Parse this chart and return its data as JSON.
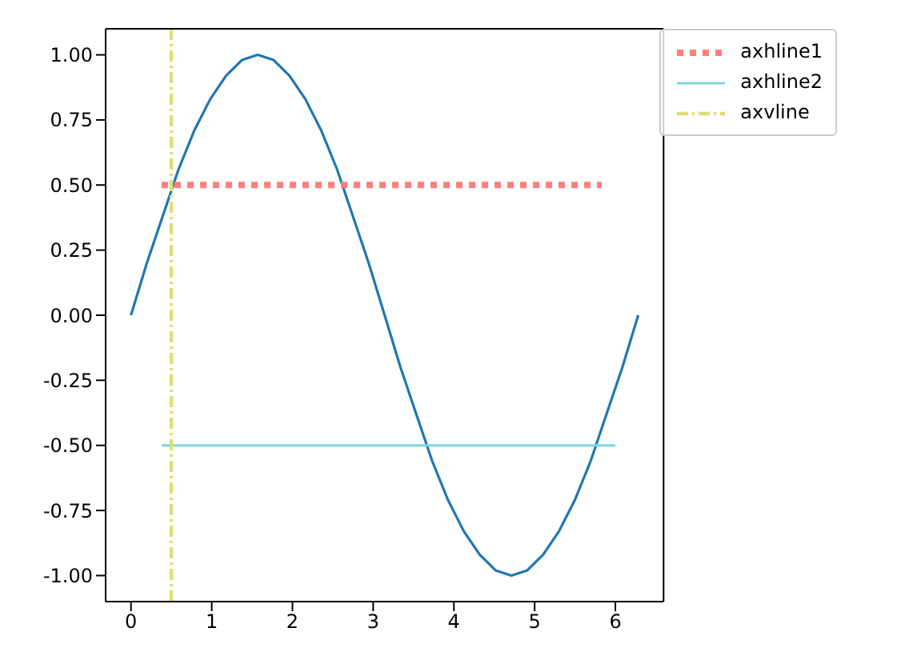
{
  "chart_data": {
    "type": "line",
    "xlim": [
      -0.314,
      6.597
    ],
    "ylim": [
      -1.1,
      1.1
    ],
    "xticks": [
      0,
      1,
      2,
      3,
      4,
      5,
      6
    ],
    "yticks": [
      {
        "value": -1,
        "label": "-1.00"
      },
      {
        "value": -0.75,
        "label": "-0.75"
      },
      {
        "value": -0.5,
        "label": "-0.50"
      },
      {
        "value": -0.25,
        "label": "-0.25"
      },
      {
        "value": 0,
        "label": "0.00"
      },
      {
        "value": 0.25,
        "label": "0.25"
      },
      {
        "value": 0.5,
        "label": "0.50"
      },
      {
        "value": 0.75,
        "label": "0.75"
      },
      {
        "value": 1,
        "label": "1.00"
      }
    ],
    "legend": "top right",
    "series": [
      {
        "color": "#1f77b4",
        "line_style": "solid",
        "x": [
          0,
          0.196,
          0.393,
          0.589,
          0.785,
          0.982,
          1.178,
          1.374,
          1.571,
          1.767,
          1.963,
          2.16,
          2.356,
          2.553,
          2.749,
          2.945,
          3.142,
          3.338,
          3.534,
          3.731,
          3.927,
          4.123,
          4.32,
          4.516,
          4.712,
          4.909,
          5.105,
          5.301,
          5.498,
          5.694,
          5.89,
          6.087,
          6.283
        ],
        "values": [
          0,
          0.2,
          0.38,
          0.56,
          0.71,
          0.83,
          0.92,
          0.98,
          1,
          0.98,
          0.92,
          0.83,
          0.71,
          0.56,
          0.38,
          0.2,
          0,
          -0.2,
          -0.38,
          -0.56,
          -0.71,
          -0.83,
          -0.92,
          -0.98,
          -1,
          -0.98,
          -0.92,
          -0.83,
          -0.71,
          -0.56,
          -0.38,
          -0.2,
          0
        ]
      },
      {
        "name": "axhline1",
        "color": "#ff7f7f",
        "line_style": "dotted",
        "x": [
          0.38,
          5.83
        ],
        "values": [
          0.5,
          0.5
        ]
      },
      {
        "name": "axhline2",
        "color": "#7fd8d8",
        "line_style": "solid",
        "x": [
          0.38,
          6.0
        ],
        "values": [
          -0.5,
          -0.5
        ]
      },
      {
        "name": "axvline",
        "color": "#dede7a",
        "line_style": "dashed",
        "x": [
          0.5,
          0.5
        ],
        "values": [
          -1.1,
          1.1
        ]
      }
    ]
  }
}
